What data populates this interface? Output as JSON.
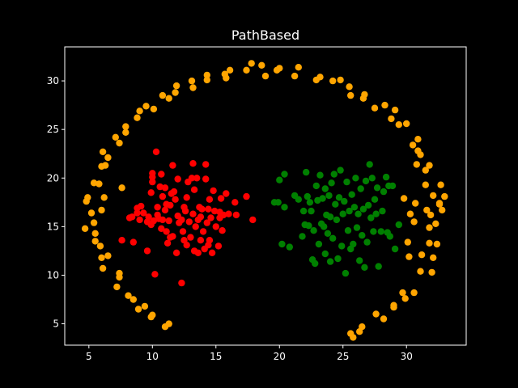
{
  "chart_data": {
    "type": "scatter",
    "title": "PathBased",
    "xlabel": "",
    "ylabel": "",
    "xlim": [
      3.1,
      34.7
    ],
    "ylim": [
      2.8,
      33.5
    ],
    "xticks": [
      5,
      10,
      15,
      20,
      25,
      30
    ],
    "yticks": [
      5,
      10,
      15,
      20,
      25,
      30
    ],
    "grid": false,
    "background": "#000000",
    "series": [
      {
        "color": "#ffa500",
        "points": [
          [
            4.7,
            14.8
          ],
          [
            4.8,
            17.6
          ],
          [
            4.9,
            18.0
          ],
          [
            5.2,
            16.4
          ],
          [
            5.4,
            15.4
          ],
          [
            5.5,
            14.3
          ],
          [
            5.5,
            13.5
          ],
          [
            5.4,
            19.5
          ],
          [
            5.8,
            19.4
          ],
          [
            5.9,
            13.0
          ],
          [
            6.0,
            11.8
          ],
          [
            6.0,
            16.7
          ],
          [
            6.0,
            21.2
          ],
          [
            6.1,
            10.7
          ],
          [
            6.3,
            21.3
          ],
          [
            6.1,
            22.7
          ],
          [
            6.2,
            18.0
          ],
          [
            6.5,
            12.0
          ],
          [
            6.5,
            22.1
          ],
          [
            7.1,
            24.2
          ],
          [
            7.2,
            8.8
          ],
          [
            7.4,
            23.6
          ],
          [
            7.4,
            9.8
          ],
          [
            7.4,
            10.2
          ],
          [
            7.6,
            19.0
          ],
          [
            7.9,
            24.7
          ],
          [
            7.9,
            25.3
          ],
          [
            8.1,
            7.9
          ],
          [
            8.5,
            7.5
          ],
          [
            8.8,
            26.2
          ],
          [
            8.9,
            6.5
          ],
          [
            9.0,
            26.9
          ],
          [
            9.4,
            6.8
          ],
          [
            9.5,
            27.4
          ],
          [
            9.9,
            5.7
          ],
          [
            10.0,
            5.9
          ],
          [
            10.1,
            27.1
          ],
          [
            10.8,
            28.5
          ],
          [
            11.0,
            4.7
          ],
          [
            11.3,
            5.0
          ],
          [
            11.3,
            28.2
          ],
          [
            11.8,
            28.8
          ],
          [
            11.9,
            29.5
          ],
          [
            13.1,
            30.0
          ],
          [
            13.2,
            29.3
          ],
          [
            14.3,
            30.1
          ],
          [
            14.3,
            30.6
          ],
          [
            15.7,
            30.7
          ],
          [
            15.8,
            30.3
          ],
          [
            16.1,
            31.1
          ],
          [
            17.4,
            31.1
          ],
          [
            17.8,
            31.8
          ],
          [
            18.6,
            31.6
          ],
          [
            18.9,
            30.5
          ],
          [
            19.8,
            31.1
          ],
          [
            20.0,
            31.3
          ],
          [
            21.2,
            30.5
          ],
          [
            21.5,
            31.4
          ],
          [
            22.9,
            30.1
          ],
          [
            23.2,
            30.4
          ],
          [
            24.2,
            30.0
          ],
          [
            24.8,
            30.1
          ],
          [
            25.5,
            29.4
          ],
          [
            25.6,
            28.5
          ],
          [
            26.6,
            28.2
          ],
          [
            26.7,
            28.6
          ],
          [
            25.6,
            4.0
          ],
          [
            25.8,
            3.6
          ],
          [
            26.3,
            4.2
          ],
          [
            26.5,
            4.7
          ],
          [
            27.5,
            27.2
          ],
          [
            27.6,
            6.0
          ],
          [
            28.3,
            27.5
          ],
          [
            28.2,
            5.5
          ],
          [
            28.8,
            26.1
          ],
          [
            29.0,
            6.7
          ],
          [
            29.0,
            6.9
          ],
          [
            29.1,
            27.0
          ],
          [
            29.4,
            25.5
          ],
          [
            29.7,
            8.2
          ],
          [
            29.9,
            7.6
          ],
          [
            29.8,
            17.9
          ],
          [
            30.0,
            25.6
          ],
          [
            30.1,
            13.4
          ],
          [
            30.2,
            11.9
          ],
          [
            30.3,
            16.3
          ],
          [
            30.5,
            23.4
          ],
          [
            30.6,
            8.2
          ],
          [
            30.6,
            15.5
          ],
          [
            30.7,
            17.4
          ],
          [
            30.8,
            21.4
          ],
          [
            30.9,
            24.0
          ],
          [
            30.9,
            22.8
          ],
          [
            31.1,
            22.4
          ],
          [
            31.1,
            10.4
          ],
          [
            31.2,
            12.1
          ],
          [
            31.5,
            20.8
          ],
          [
            31.5,
            19.3
          ],
          [
            31.6,
            16.7
          ],
          [
            31.8,
            21.3
          ],
          [
            31.8,
            13.3
          ],
          [
            31.8,
            14.9
          ],
          [
            31.9,
            16.2
          ],
          [
            32.0,
            10.3
          ],
          [
            32.1,
            11.8
          ],
          [
            32.1,
            18.2
          ],
          [
            32.3,
            15.3
          ],
          [
            32.4,
            13.2
          ],
          [
            32.6,
            17.3
          ],
          [
            32.6,
            17.4
          ],
          [
            32.7,
            19.3
          ],
          [
            32.8,
            16.7
          ],
          [
            33.0,
            18.1
          ]
        ]
      },
      {
        "color": "#ff0000",
        "points": [
          [
            7.6,
            13.6
          ],
          [
            8.2,
            15.9
          ],
          [
            8.4,
            16.0
          ],
          [
            8.5,
            13.4
          ],
          [
            8.8,
            16.4
          ],
          [
            8.8,
            16.9
          ],
          [
            9.0,
            15.7
          ],
          [
            9.1,
            17.1
          ],
          [
            9.3,
            16.4
          ],
          [
            9.6,
            12.5
          ],
          [
            9.6,
            15.5
          ],
          [
            9.7,
            16.0
          ],
          [
            9.9,
            15.2
          ],
          [
            9.9,
            18.5
          ],
          [
            10.0,
            20.5
          ],
          [
            10.0,
            20.1
          ],
          [
            10.0,
            19.6
          ],
          [
            10.1,
            15.6
          ],
          [
            10.2,
            10.1
          ],
          [
            10.3,
            22.7
          ],
          [
            10.4,
            16.2
          ],
          [
            10.4,
            17.0
          ],
          [
            10.5,
            15.8
          ],
          [
            10.6,
            19.1
          ],
          [
            10.7,
            20.4
          ],
          [
            10.7,
            14.8
          ],
          [
            10.8,
            18.1
          ],
          [
            10.8,
            15.7
          ],
          [
            11.0,
            16.7
          ],
          [
            11.0,
            19.0
          ],
          [
            11.1,
            17.3
          ],
          [
            11.1,
            14.5
          ],
          [
            11.2,
            13.3
          ],
          [
            11.3,
            15.6
          ],
          [
            11.4,
            17.2
          ],
          [
            11.4,
            13.9
          ],
          [
            11.5,
            18.4
          ],
          [
            11.6,
            21.3
          ],
          [
            11.6,
            14.0
          ],
          [
            11.7,
            18.6
          ],
          [
            11.8,
            17.8
          ],
          [
            11.9,
            12.3
          ],
          [
            12.0,
            16.1
          ],
          [
            12.0,
            19.9
          ],
          [
            12.1,
            15.4
          ],
          [
            12.3,
            15.7
          ],
          [
            12.3,
            9.2
          ],
          [
            12.4,
            14.5
          ],
          [
            12.5,
            17.0
          ],
          [
            12.5,
            13.6
          ],
          [
            12.6,
            16.6
          ],
          [
            12.7,
            13.1
          ],
          [
            12.7,
            18.0
          ],
          [
            12.8,
            19.6
          ],
          [
            12.9,
            15.5
          ],
          [
            13.0,
            13.9
          ],
          [
            13.1,
            20.0
          ],
          [
            13.2,
            21.5
          ],
          [
            13.2,
            16.3
          ],
          [
            13.3,
            12.5
          ],
          [
            13.3,
            18.8
          ],
          [
            13.4,
            15.0
          ],
          [
            13.5,
            20.0
          ],
          [
            13.6,
            15.7
          ],
          [
            13.6,
            12.3
          ],
          [
            13.7,
            17.0
          ],
          [
            13.8,
            16.0
          ],
          [
            13.8,
            13.6
          ],
          [
            13.9,
            16.8
          ],
          [
            14.0,
            14.5
          ],
          [
            14.1,
            12.7
          ],
          [
            14.2,
            19.9
          ],
          [
            14.2,
            21.4
          ],
          [
            14.3,
            15.4
          ],
          [
            14.4,
            16.8
          ],
          [
            14.4,
            13.1
          ],
          [
            14.5,
            17.8
          ],
          [
            14.5,
            13.6
          ],
          [
            14.6,
            15.9
          ],
          [
            14.7,
            12.3
          ],
          [
            14.8,
            18.7
          ],
          [
            14.9,
            16.6
          ],
          [
            15.0,
            15.0
          ],
          [
            15.2,
            13.0
          ],
          [
            15.3,
            16.5
          ],
          [
            15.3,
            15.9
          ],
          [
            15.4,
            17.9
          ],
          [
            15.5,
            14.6
          ],
          [
            15.6,
            16.2
          ],
          [
            15.8,
            18.4
          ],
          [
            16.0,
            16.3
          ],
          [
            16.5,
            17.5
          ],
          [
            16.6,
            16.2
          ],
          [
            17.4,
            18.1
          ],
          [
            17.9,
            15.7
          ]
        ]
      },
      {
        "color": "#008000",
        "points": [
          [
            19.6,
            17.5
          ],
          [
            19.9,
            17.5
          ],
          [
            20.0,
            19.8
          ],
          [
            20.2,
            13.2
          ],
          [
            20.4,
            20.4
          ],
          [
            20.4,
            17.0
          ],
          [
            20.8,
            12.9
          ],
          [
            21.2,
            18.2
          ],
          [
            21.5,
            17.8
          ],
          [
            21.8,
            14.0
          ],
          [
            21.9,
            16.6
          ],
          [
            22.0,
            15.2
          ],
          [
            22.1,
            20.6
          ],
          [
            22.2,
            18.1
          ],
          [
            22.3,
            15.1
          ],
          [
            22.4,
            17.5
          ],
          [
            22.5,
            16.6
          ],
          [
            22.6,
            11.6
          ],
          [
            22.7,
            14.6
          ],
          [
            22.8,
            11.2
          ],
          [
            22.9,
            19.2
          ],
          [
            23.0,
            17.7
          ],
          [
            23.1,
            13.2
          ],
          [
            23.2,
            20.3
          ],
          [
            23.3,
            15.3
          ],
          [
            23.4,
            17.9
          ],
          [
            23.5,
            15.0
          ],
          [
            23.6,
            12.2
          ],
          [
            23.6,
            18.9
          ],
          [
            23.7,
            16.2
          ],
          [
            23.8,
            14.3
          ],
          [
            23.9,
            18.2
          ],
          [
            24.0,
            11.4
          ],
          [
            24.0,
            16.0
          ],
          [
            24.1,
            19.5
          ],
          [
            24.2,
            13.8
          ],
          [
            24.3,
            20.4
          ],
          [
            24.4,
            17.3
          ],
          [
            24.5,
            15.7
          ],
          [
            24.6,
            11.7
          ],
          [
            24.7,
            18.0
          ],
          [
            24.8,
            20.8
          ],
          [
            24.9,
            13.0
          ],
          [
            25.0,
            16.3
          ],
          [
            25.1,
            17.6
          ],
          [
            25.2,
            10.2
          ],
          [
            25.3,
            19.6
          ],
          [
            25.4,
            14.6
          ],
          [
            25.5,
            16.6
          ],
          [
            25.6,
            12.7
          ],
          [
            25.7,
            18.3
          ],
          [
            25.8,
            13.2
          ],
          [
            25.9,
            17.0
          ],
          [
            26.0,
            20.0
          ],
          [
            26.1,
            14.9
          ],
          [
            26.2,
            16.3
          ],
          [
            26.3,
            11.5
          ],
          [
            26.4,
            18.9
          ],
          [
            26.5,
            14.1
          ],
          [
            26.6,
            16.8
          ],
          [
            26.7,
            10.8
          ],
          [
            26.8,
            19.7
          ],
          [
            26.9,
            13.4
          ],
          [
            27.0,
            17.2
          ],
          [
            27.1,
            21.4
          ],
          [
            27.2,
            15.9
          ],
          [
            27.3,
            20.0
          ],
          [
            27.4,
            14.5
          ],
          [
            27.5,
            17.8
          ],
          [
            27.6,
            16.3
          ],
          [
            27.7,
            19.0
          ],
          [
            27.8,
            10.9
          ],
          [
            28.0,
            14.5
          ],
          [
            28.1,
            16.6
          ],
          [
            28.2,
            18.6
          ],
          [
            28.4,
            20.1
          ],
          [
            28.5,
            14.4
          ],
          [
            28.6,
            19.2
          ],
          [
            28.7,
            14.0
          ],
          [
            28.9,
            19.2
          ],
          [
            29.1,
            12.7
          ],
          [
            29.4,
            15.2
          ]
        ]
      }
    ]
  }
}
